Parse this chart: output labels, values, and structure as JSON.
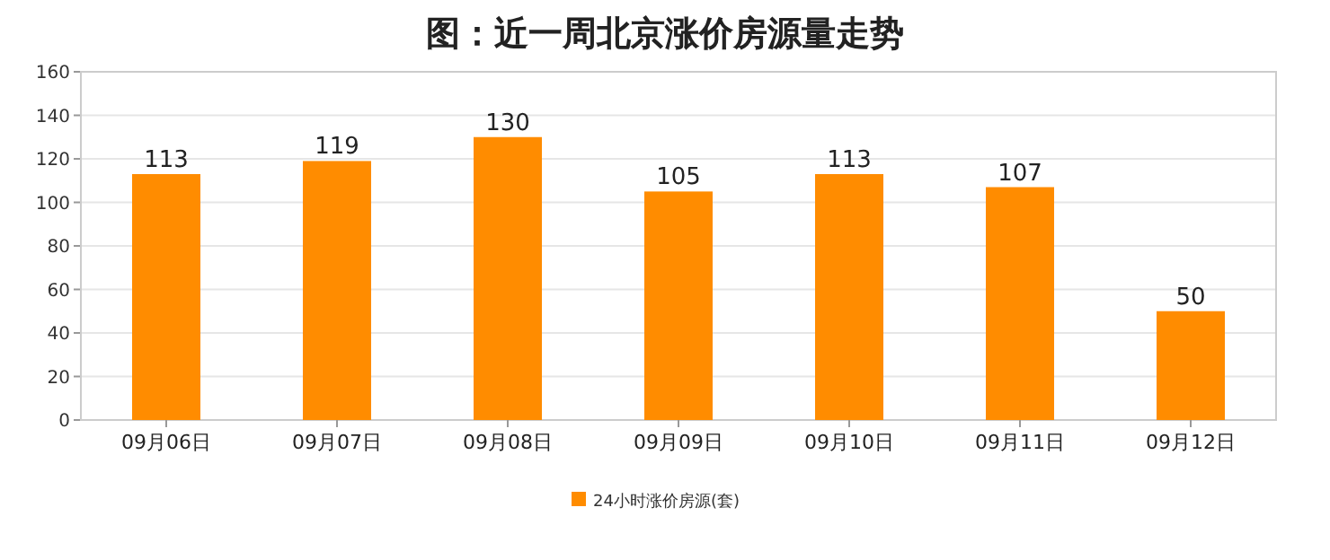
{
  "chart_data": {
    "type": "bar",
    "title": "图：近一周北京涨价房源量走势",
    "categories": [
      "09月06日",
      "09月07日",
      "09月08日",
      "09月09日",
      "09月10日",
      "09月11日",
      "09月12日"
    ],
    "series": [
      {
        "name": "24小时涨价房源(套)",
        "color": "#ff8c00",
        "values": [
          113,
          119,
          130,
          105,
          113,
          107,
          50
        ]
      }
    ],
    "ylim": [
      0,
      160
    ],
    "yticks": [
      0,
      20,
      40,
      60,
      80,
      100,
      120,
      140,
      160
    ],
    "grid": "y",
    "data_labels": true,
    "legend": "bottom"
  }
}
